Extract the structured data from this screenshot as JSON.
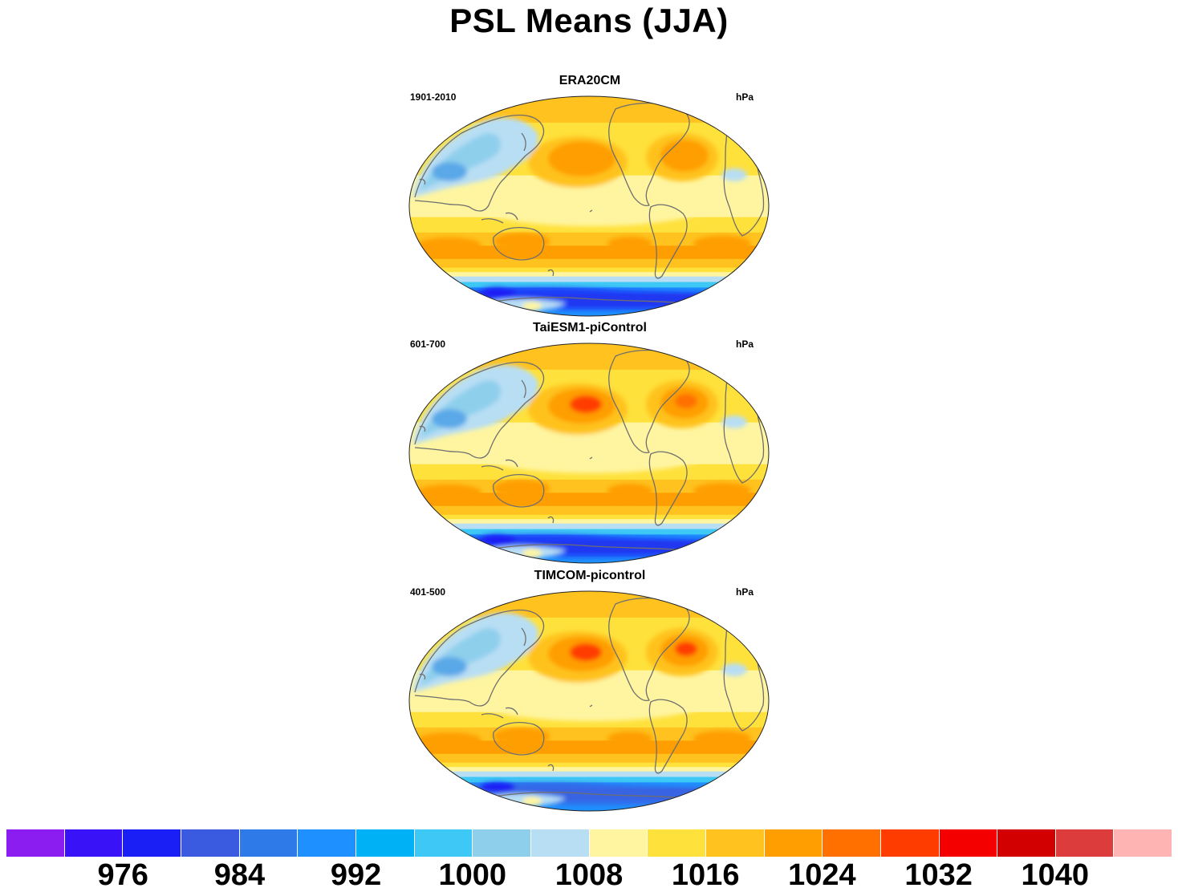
{
  "title": "PSL Means (JJA)",
  "panels": [
    {
      "title": "ERA20CM",
      "period": "1901-2010",
      "units": "hPa",
      "high_center_pacific_color": "#ff9e00",
      "high_center_atlantic_color": "#ff9e00",
      "south_ocean_low_color": "#1a1ff5"
    },
    {
      "title": "TaiESM1-piControl",
      "period": "601-700",
      "units": "hPa",
      "high_center_pacific_color": "#ff3c00",
      "high_center_atlantic_color": "#ff7000",
      "south_ocean_low_color": "#1a1ff5"
    },
    {
      "title": "TIMCOM-picontrol",
      "period": "401-500",
      "units": "hPa",
      "high_center_pacific_color": "#ff3c00",
      "high_center_atlantic_color": "#ff3c00",
      "south_ocean_low_color": "#3a5ae0"
    }
  ],
  "colorbar": {
    "colors": [
      "#8c1df0",
      "#3a12f7",
      "#1a1ff5",
      "#3a5ae0",
      "#2e7ae8",
      "#1e90ff",
      "#00b2f5",
      "#3ec8f5",
      "#8ecfec",
      "#b8def4",
      "#fff5a0",
      "#ffe13c",
      "#ffc21e",
      "#ff9e00",
      "#ff7000",
      "#ff3c00",
      "#f50000",
      "#d20000",
      "#dc3c3c",
      "#ffb4b4"
    ],
    "labels": [
      "976",
      "984",
      "992",
      "1000",
      "1008",
      "1016",
      "1024",
      "1032",
      "1040"
    ]
  },
  "palette": {
    "yellow_light": "#fff5a0",
    "yellow": "#ffe13c",
    "yellow_orange": "#ffc21e",
    "orange": "#ff9e00",
    "blue_light": "#b8def4",
    "blue_mid": "#8ecfec",
    "blue": "#3ec8f5",
    "blue_dark": "#1e90ff",
    "coast": "#6e6e6e"
  }
}
